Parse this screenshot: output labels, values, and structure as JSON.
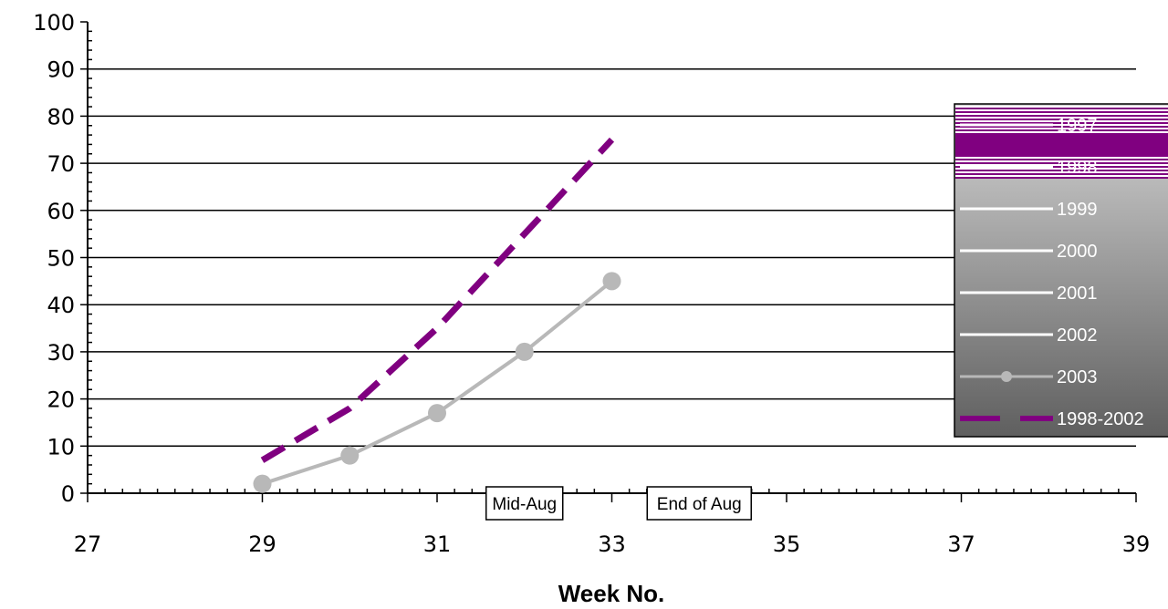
{
  "chart_data": {
    "type": "line",
    "xlabel": "Week No.",
    "ylabel": "",
    "xlim": [
      27,
      39
    ],
    "ylim": [
      0,
      100
    ],
    "x_ticks": [
      27,
      29,
      31,
      33,
      35,
      37,
      39
    ],
    "y_ticks": [
      0,
      10,
      20,
      30,
      40,
      50,
      60,
      70,
      80,
      90,
      100
    ],
    "grid": "horizontal",
    "legend_position": "right",
    "annotations": [
      {
        "text": "Mid-Aug",
        "x": 32
      },
      {
        "text": "End of Aug",
        "x": 34
      }
    ],
    "series": [
      {
        "name": "1997",
        "color": "#800080",
        "style": "solid",
        "x": [],
        "y": []
      },
      {
        "name": "1998",
        "color": "#800080",
        "style": "solid",
        "x": [],
        "y": []
      },
      {
        "name": "1999",
        "color": "#ffffff",
        "style": "solid",
        "x": [],
        "y": []
      },
      {
        "name": "2000",
        "color": "#ffffff",
        "style": "solid",
        "x": [],
        "y": []
      },
      {
        "name": "2001",
        "color": "#ffffff",
        "style": "solid",
        "x": [],
        "y": []
      },
      {
        "name": "2002",
        "color": "#ffffff",
        "style": "solid",
        "x": [],
        "y": []
      },
      {
        "name": "2003",
        "color": "#b8b8b8",
        "style": "solid-marker",
        "x": [
          29,
          30,
          31,
          32,
          33
        ],
        "y": [
          2,
          8,
          17,
          30,
          45
        ]
      },
      {
        "name": "1998-2002",
        "color": "#800080",
        "style": "dashed",
        "x": [
          29,
          30,
          31,
          32,
          33
        ],
        "y": [
          7,
          18,
          35,
          55,
          75
        ]
      }
    ]
  }
}
